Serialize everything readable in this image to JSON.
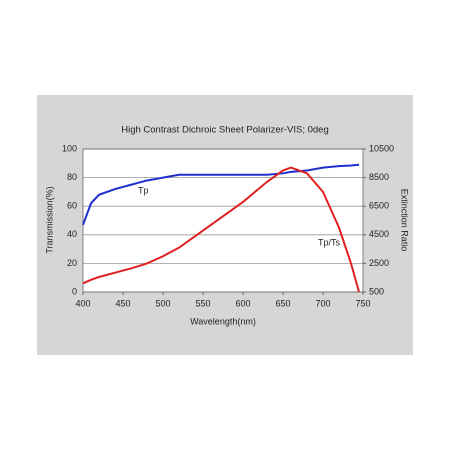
{
  "chart_data": {
    "type": "line",
    "title": "High Contrast Dichroic Sheet Polarizer-VIS; 0deg",
    "x_label": "Wavelength(nm)",
    "y_label": "Transmission(%)",
    "y2_label": "Extinction Ratio",
    "x": [
      400,
      410,
      420,
      440,
      460,
      480,
      500,
      520,
      550,
      600,
      630,
      650,
      660,
      680,
      700,
      720,
      735,
      745
    ],
    "xlim": [
      400,
      750
    ],
    "xticks": [
      400,
      450,
      500,
      550,
      600,
      650,
      700,
      750
    ],
    "ylim": [
      0,
      100
    ],
    "yticks": [
      0,
      20,
      40,
      60,
      80,
      100
    ],
    "y2lim": [
      500,
      10500
    ],
    "y2ticks": [
      500,
      2500,
      4500,
      6500,
      8500,
      10500
    ],
    "grid": true,
    "series": [
      {
        "name": "Tp",
        "color": "#1f2fd0",
        "values": [
          47,
          62,
          68,
          72,
          75,
          78,
          80,
          82,
          82,
          82,
          82,
          83,
          84,
          85,
          87,
          88,
          88.5,
          89
        ]
      },
      {
        "name": "Tp/Ts",
        "color": "#e02020",
        "axis": "y2",
        "values": [
          1100,
          1350,
          1550,
          1850,
          2150,
          2500,
          3000,
          3600,
          4800,
          6800,
          8200,
          9000,
          9200,
          8800,
          7500,
          5000,
          2500,
          500
        ]
      }
    ]
  }
}
